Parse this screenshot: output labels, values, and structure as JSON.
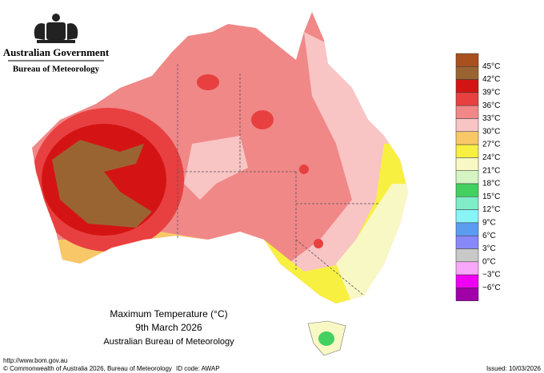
{
  "header": {
    "government": "Australian Government",
    "agency": "Bureau of Meteorology"
  },
  "legend": [
    {
      "label": "45°C",
      "color": "#a8501e"
    },
    {
      "label": "42°C",
      "color": "#9a6432"
    },
    {
      "label": "39°C",
      "color": "#d41414"
    },
    {
      "label": "36°C",
      "color": "#e84040"
    },
    {
      "label": "33°C",
      "color": "#f08888"
    },
    {
      "label": "30°C",
      "color": "#f8c4c4"
    },
    {
      "label": "27°C",
      "color": "#f8c868"
    },
    {
      "label": "24°C",
      "color": "#f8f040"
    },
    {
      "label": "21°C",
      "color": "#f8f8c4"
    },
    {
      "label": "18°C",
      "color": "#d4f4c4"
    },
    {
      "label": "15°C",
      "color": "#44d060"
    },
    {
      "label": "12°C",
      "color": "#80ecc8"
    },
    {
      "label": "9°C",
      "color": "#88f4f8"
    },
    {
      "label": "6°C",
      "color": "#5c9cf0"
    },
    {
      "label": "3°C",
      "color": "#8888f8"
    },
    {
      "label": "0°C",
      "color": "#c8c8c8"
    },
    {
      "label": "−3°C",
      "color": "#f8a8f8"
    },
    {
      "label": "−6°C",
      "color": "#f000f0"
    }
  ],
  "legend_bottom_color": "#a000a8",
  "title": {
    "line1": "Maximum Temperature (°C)",
    "line2": "9th March 2026",
    "line3": "Australian Bureau of Meteorology"
  },
  "footer": {
    "url": "http://www.bom.gov.au",
    "copyright": "© Commonwealth of Australia 2026, Bureau of Meteorology",
    "id_code": "ID code: AWAP",
    "issued": "Issued: 10/03/2026"
  }
}
